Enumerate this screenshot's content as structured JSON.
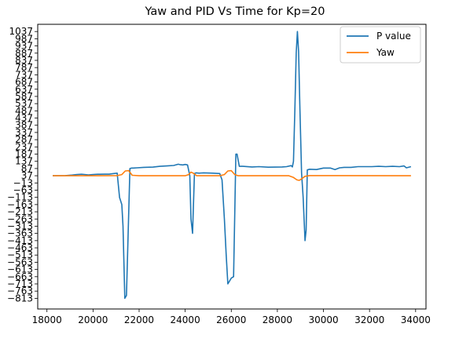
{
  "chart_data": {
    "type": "line",
    "title": "Yaw and PID Vs Time for Kp=20",
    "xlabel": "",
    "ylabel": "",
    "xlim": [
      17600,
      34450
    ],
    "ylim": [
      -887,
      1087
    ],
    "x_ticks": [
      18000,
      20000,
      22000,
      24000,
      26000,
      28000,
      30000,
      32000,
      34000
    ],
    "y_ticks": [
      1037,
      987,
      937,
      887,
      837,
      787,
      737,
      687,
      637,
      587,
      537,
      487,
      437,
      387,
      337,
      287,
      237,
      187,
      137,
      87,
      37,
      -13,
      -63,
      -113,
      -163,
      -213,
      -263,
      -313,
      -363,
      -413,
      -463,
      -513,
      -563,
      -613,
      -663,
      -713,
      -763,
      -813
    ],
    "grid": false,
    "legend": {
      "placement": "top-right",
      "entries": [
        "P value",
        "Yaw"
      ]
    },
    "series": [
      {
        "name": "P value",
        "color": "#1f77b4",
        "x": [
          18250,
          18800,
          19100,
          19300,
          19500,
          19800,
          20000,
          20200,
          20500,
          20700,
          20900,
          21050,
          21150,
          21250,
          21300,
          21380,
          21450,
          21600,
          21680,
          21750,
          21900,
          22200,
          22600,
          22900,
          23200,
          23500,
          23700,
          23800,
          23900,
          24000,
          24100,
          24200,
          24250,
          24320,
          24400,
          24480,
          24600,
          24800,
          25200,
          25500,
          25600,
          25700,
          25780,
          25850,
          26000,
          26100,
          26200,
          26250,
          26350,
          26500,
          26900,
          27200,
          27600,
          27900,
          28200,
          28400,
          28600,
          28650,
          28700,
          28760,
          28820,
          28870,
          28920,
          28980,
          29050,
          29120,
          29200,
          29250,
          29300,
          29400,
          29700,
          30000,
          30300,
          30500,
          30700,
          30900,
          31200,
          31500,
          31800,
          32100,
          32400,
          32700,
          33000,
          33300,
          33500,
          33600,
          33800
        ],
        "values": [
          37,
          38,
          42,
          45,
          47,
          43,
          45,
          47,
          48,
          48,
          52,
          55,
          -113,
          -163,
          -313,
          -813,
          -793,
          87,
          90,
          90,
          92,
          95,
          97,
          102,
          105,
          108,
          117,
          113,
          112,
          115,
          112,
          37,
          -263,
          -363,
          52,
          57,
          55,
          57,
          55,
          52,
          8,
          -263,
          -513,
          -713,
          -673,
          -663,
          187,
          187,
          102,
          102,
          98,
          100,
          96,
          97,
          98,
          100,
          107,
          98,
          137,
          500,
          890,
          1037,
          900,
          500,
          57,
          -113,
          -413,
          -340,
          77,
          82,
          80,
          90,
          90,
          80,
          92,
          95,
          95,
          100,
          100,
          100,
          102,
          100,
          102,
          100,
          105,
          92,
          100
        ]
      },
      {
        "name": "Yaw",
        "color": "#ff7f0e",
        "x": [
          18250,
          20000,
          21050,
          21250,
          21400,
          21550,
          21700,
          22000,
          24000,
          24150,
          24250,
          24350,
          24500,
          25500,
          25700,
          25850,
          26000,
          26150,
          26300,
          27000,
          28500,
          28700,
          28850,
          28950,
          29050,
          29200,
          29400,
          30500,
          33800
        ],
        "values": [
          37,
          37,
          38,
          45,
          70,
          72,
          40,
          37,
          37,
          45,
          62,
          55,
          37,
          37,
          45,
          70,
          72,
          45,
          37,
          37,
          37,
          25,
          8,
          5,
          15,
          33,
          38,
          38,
          37
        ]
      }
    ]
  }
}
